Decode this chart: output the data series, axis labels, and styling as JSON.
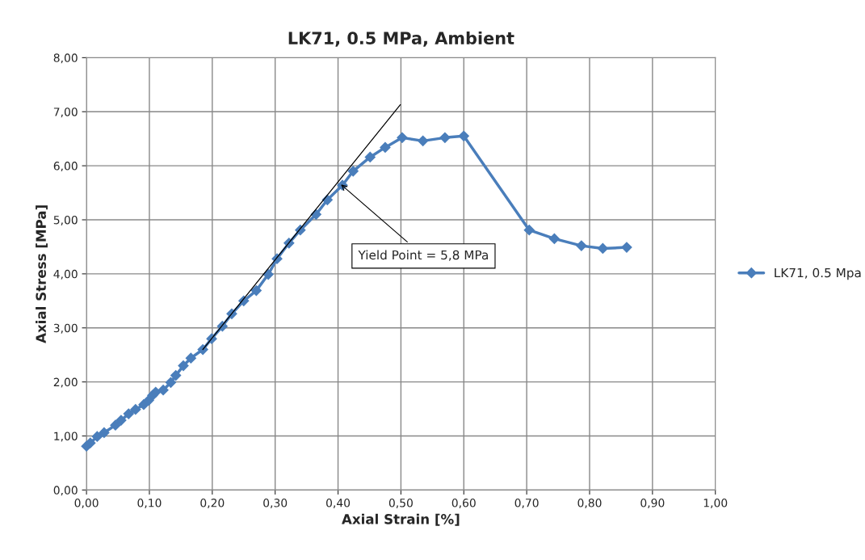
{
  "chart_data": {
    "type": "line",
    "title": "LK71, 0.5 MPa, Ambient",
    "xlabel": "Axial Strain [%]",
    "ylabel": "Axial Stress [MPa]",
    "xlim": [
      0,
      1
    ],
    "ylim": [
      0,
      8
    ],
    "xticks": [
      {
        "value": 0,
        "label": "0,00"
      },
      {
        "value": 0.1,
        "label": "0,10"
      },
      {
        "value": 0.2,
        "label": "0,20"
      },
      {
        "value": 0.3,
        "label": "0,30"
      },
      {
        "value": 0.4,
        "label": "0,40"
      },
      {
        "value": 0.5,
        "label": "0,50"
      },
      {
        "value": 0.6,
        "label": "0,60"
      },
      {
        "value": 0.7,
        "label": "0,70"
      },
      {
        "value": 0.8,
        "label": "0,80"
      },
      {
        "value": 0.9,
        "label": "0,90"
      },
      {
        "value": 1,
        "label": "1,00"
      }
    ],
    "yticks": [
      {
        "value": 0,
        "label": "0,00"
      },
      {
        "value": 1,
        "label": "1,00"
      },
      {
        "value": 2,
        "label": "2,00"
      },
      {
        "value": 3,
        "label": "3,00"
      },
      {
        "value": 4,
        "label": "4,00"
      },
      {
        "value": 5,
        "label": "5,00"
      },
      {
        "value": 6,
        "label": "6,00"
      },
      {
        "value": 7,
        "label": "7,00"
      },
      {
        "value": 8,
        "label": "8,00"
      }
    ],
    "grid": true,
    "legend": "right",
    "series": [
      {
        "name": "LK71, 0.5 Mpa",
        "color": "#4a7ebb",
        "marker": "diamond",
        "x": [
          0.0,
          0.006,
          0.017,
          0.028,
          0.046,
          0.055,
          0.067,
          0.078,
          0.091,
          0.099,
          0.105,
          0.11,
          0.122,
          0.134,
          0.142,
          0.154,
          0.166,
          0.185,
          0.199,
          0.216,
          0.231,
          0.25,
          0.27,
          0.289,
          0.303,
          0.322,
          0.34,
          0.365,
          0.383,
          0.407,
          0.424,
          0.451,
          0.475,
          0.502,
          0.535,
          0.57,
          0.6,
          0.704,
          0.744,
          0.787,
          0.821,
          0.859
        ],
        "values": [
          0.81,
          0.87,
          0.99,
          1.06,
          1.2,
          1.29,
          1.41,
          1.49,
          1.58,
          1.66,
          1.75,
          1.81,
          1.85,
          1.99,
          2.12,
          2.3,
          2.44,
          2.6,
          2.8,
          3.03,
          3.26,
          3.5,
          3.69,
          3.99,
          4.28,
          4.57,
          4.81,
          5.1,
          5.37,
          5.64,
          5.9,
          6.16,
          6.34,
          6.52,
          6.46,
          6.52,
          6.55,
          4.81,
          4.65,
          4.52,
          4.47,
          4.49
        ]
      },
      {
        "color": "#000000",
        "marker": "none",
        "x": [
          0.185,
          0.499
        ],
        "values": [
          2.6,
          7.13
        ]
      }
    ],
    "annotations": [
      {
        "text": "Yield Point = 5,8 MPa",
        "x": 0.402,
        "y": 5.68
      }
    ]
  }
}
